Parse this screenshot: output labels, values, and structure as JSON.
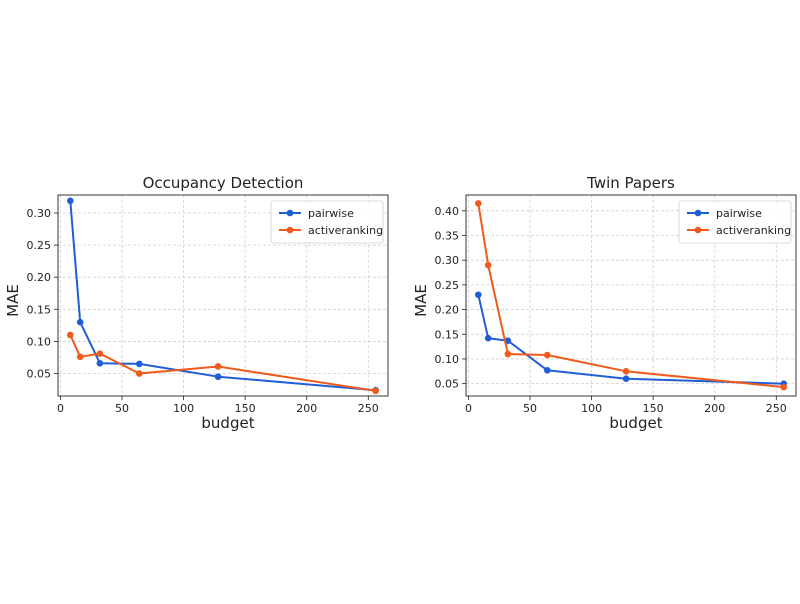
{
  "chart_data": [
    {
      "type": "line",
      "title": "Occupancy Detection",
      "xlabel": "budget",
      "ylabel": "MAE",
      "xlim": [
        -2,
        266
      ],
      "ylim": [
        0.015,
        0.328
      ],
      "xticks": [
        0,
        50,
        100,
        150,
        200,
        250
      ],
      "yticks": [
        0.05,
        0.1,
        0.15,
        0.2,
        0.25,
        0.3
      ],
      "ytick_labels": [
        "0.05",
        "0.10",
        "0.15",
        "0.20",
        "0.25",
        "0.30"
      ],
      "grid": true,
      "legend_position": "top-right",
      "series": [
        {
          "name": "pairwise",
          "color": "#1f5fd6",
          "x": [
            8,
            16,
            32,
            64,
            128,
            256
          ],
          "y": [
            0.319,
            0.13,
            0.066,
            0.065,
            0.045,
            0.024
          ]
        },
        {
          "name": "activeranking",
          "color": "#f05a1a",
          "x": [
            8,
            16,
            32,
            64,
            128,
            256
          ],
          "y": [
            0.11,
            0.076,
            0.081,
            0.05,
            0.061,
            0.023
          ]
        }
      ]
    },
    {
      "type": "line",
      "title": "Twin Papers",
      "xlabel": "budget",
      "ylabel": "MAE",
      "xlim": [
        -2,
        266
      ],
      "ylim": [
        0.025,
        0.432
      ],
      "xticks": [
        0,
        50,
        100,
        150,
        200,
        250
      ],
      "yticks": [
        0.05,
        0.1,
        0.15,
        0.2,
        0.25,
        0.3,
        0.35,
        0.4
      ],
      "ytick_labels": [
        "0.05",
        "0.10",
        "0.15",
        "0.20",
        "0.25",
        "0.30",
        "0.35",
        "0.40"
      ],
      "grid": true,
      "legend_position": "top-right",
      "series": [
        {
          "name": "pairwise",
          "color": "#1f5fd6",
          "x": [
            8,
            16,
            32,
            64,
            128,
            256
          ],
          "y": [
            0.23,
            0.142,
            0.137,
            0.077,
            0.06,
            0.05
          ]
        },
        {
          "name": "activeranking",
          "color": "#f05a1a",
          "x": [
            8,
            16,
            32,
            64,
            128,
            256
          ],
          "y": [
            0.415,
            0.29,
            0.11,
            0.108,
            0.075,
            0.043
          ]
        }
      ]
    }
  ]
}
